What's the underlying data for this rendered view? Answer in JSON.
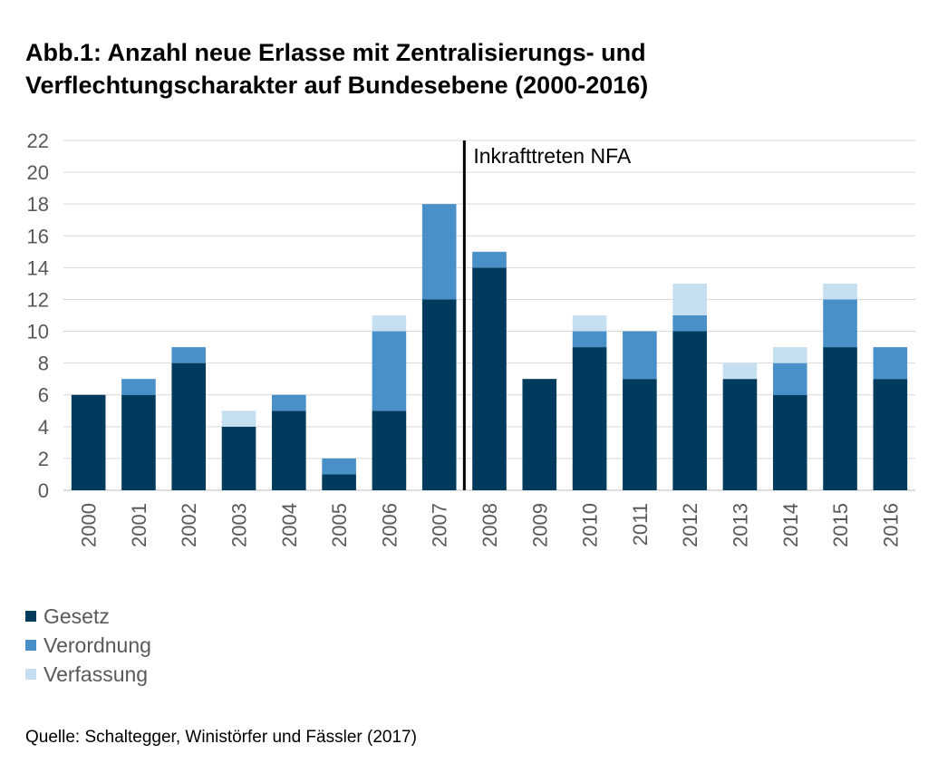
{
  "title_line1": "Abb.1: Anzahl neue Erlasse mit Zentralisierungs- und",
  "title_line2": "Verflechtungscharakter auf Bundesebene (2000-2016)",
  "source": "Quelle: Schaltegger, Winistörfer und Fässler (2017)",
  "legend": [
    {
      "label": "Gesetz",
      "color": "#003a5d"
    },
    {
      "label": "Verordnung",
      "color": "#4a90c8"
    },
    {
      "label": "Verfassung",
      "color": "#c6dff0"
    }
  ],
  "chart_data": {
    "type": "bar",
    "stacked": true,
    "categories": [
      "2000",
      "2001",
      "2002",
      "2003",
      "2004",
      "2005",
      "2006",
      "2007",
      "2008",
      "2009",
      "2010",
      "2011",
      "2012",
      "2013",
      "2014",
      "2015",
      "2016"
    ],
    "series": [
      {
        "name": "Gesetz",
        "color": "#003a5d",
        "values": [
          6,
          6,
          8,
          4,
          5,
          1,
          5,
          12,
          14,
          7,
          9,
          7,
          10,
          7,
          6,
          9,
          7
        ]
      },
      {
        "name": "Verordnung",
        "color": "#4a90c8",
        "values": [
          0,
          1,
          1,
          0,
          1,
          1,
          5,
          6,
          1,
          0,
          1,
          3,
          1,
          0,
          2,
          3,
          2
        ]
      },
      {
        "name": "Verfassung",
        "color": "#c6dff0",
        "values": [
          0,
          0,
          0,
          1,
          0,
          0,
          1,
          0,
          0,
          0,
          1,
          0,
          2,
          1,
          1,
          1,
          0
        ]
      }
    ],
    "ylim": [
      0,
      22
    ],
    "yticks": [
      0,
      2,
      4,
      6,
      8,
      10,
      12,
      14,
      16,
      18,
      20,
      22
    ],
    "grid": true,
    "legend_position": "bottom-left",
    "annotation": {
      "label": "Inkrafttreten NFA",
      "between": [
        "2007",
        "2008"
      ]
    }
  }
}
